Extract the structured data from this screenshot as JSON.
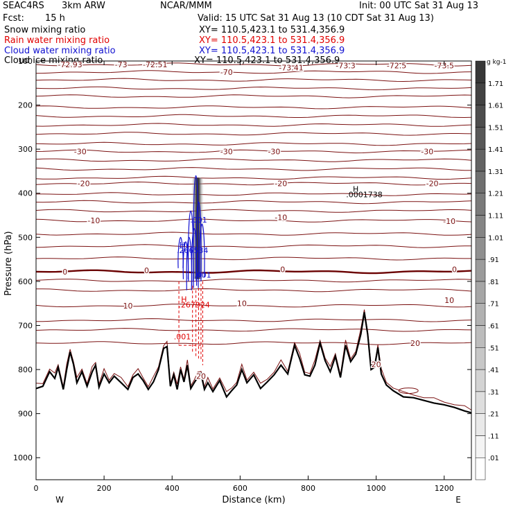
{
  "header": {
    "experiment": "SEAC4RS",
    "model": "3km ARW",
    "center": "NCAR/MMM",
    "init": "Init: 00 UTC Sat 31 Aug 13",
    "fcst_label": "Fcst:",
    "fcst_value": "15 h",
    "valid": "Valid: 15 UTC Sat 31 Aug 13 (10 CDT Sat 31 Aug 13)"
  },
  "fields": [
    {
      "label": "Snow mixing ratio",
      "xy": "XY= 110.5,423.1 to 531.4,356.9",
      "color": "#000000"
    },
    {
      "label": "Rain water mixing ratio",
      "xy": "XY= 110.5,423.1 to 531.4,356.9",
      "color": "#e00000"
    },
    {
      "label": "Cloud water mixing ratio",
      "xy": "XY= 110.5,423.1 to 531.4,356.9",
      "color": "#1010d0"
    },
    {
      "label": "Cloud ice mixing ratio",
      "xy": "XY= 110.5,423.1 to 531.4,356.9",
      "color": "#000000"
    }
  ],
  "colors": {
    "temperature": "#7a1010",
    "freezing": "#6a0000",
    "rain": "#e00000",
    "cloud_water": "#1010d0",
    "terrain": "#000000"
  },
  "chart_data": {
    "type": "cross-section",
    "xlabel": "Distance (km)",
    "ylabel": "Pressure (hPa)",
    "xlim": [
      0,
      1280
    ],
    "ylim": [
      1050,
      100
    ],
    "x_ticks": [
      0,
      200,
      400,
      600,
      800,
      1000,
      1200
    ],
    "y_ticks": [
      100,
      200,
      300,
      400,
      500,
      600,
      700,
      800,
      900,
      1000
    ],
    "west_label": "W",
    "east_label": "E",
    "colorbar": {
      "unit": "g kg-1",
      "labels": [
        ".01",
        ".11",
        ".21",
        ".31",
        ".41",
        ".51",
        ".61",
        ".71",
        ".81",
        ".91",
        "1.01",
        "1.11",
        "1.21",
        "1.31",
        "1.41",
        "1.51",
        "1.61",
        "1.71"
      ]
    },
    "temperature_contours": [
      {
        "label": "-72.93",
        "p": 108,
        "lx": 100
      },
      {
        "label": "-73",
        "p": 108,
        "lx": 250
      },
      {
        "label": "-72.51",
        "p": 108,
        "lx": 350
      },
      {
        "label": "-70",
        "p": 125,
        "lx": 560
      },
      {
        "label": "-73.41",
        "p": 115,
        "lx": 750
      },
      {
        "label": "-73.3",
        "p": 110,
        "lx": 910
      },
      {
        "label": "-72.5",
        "p": 110,
        "lx": 1060
      },
      {
        "label": "-73.5",
        "p": 110,
        "lx": 1200
      },
      {
        "label": "-30",
        "p": 305,
        "lx": 130
      },
      {
        "label": "-30",
        "p": 305,
        "lx": 560
      },
      {
        "label": "-30",
        "p": 305,
        "lx": 700
      },
      {
        "label": "-30",
        "p": 305,
        "lx": 1150
      },
      {
        "label": "-20",
        "p": 378,
        "lx": 140
      },
      {
        "label": "-20",
        "p": 378,
        "lx": 720
      },
      {
        "label": "-20",
        "p": 378,
        "lx": 1165
      },
      {
        "label": "-10",
        "p": 462,
        "lx": 170
      },
      {
        "label": "-10",
        "p": 455,
        "lx": 720
      },
      {
        "label": "-10",
        "p": 463,
        "lx": 1215
      },
      {
        "label": "0",
        "p": 578,
        "lx": 85
      },
      {
        "label": "0",
        "p": 575,
        "lx": 325
      },
      {
        "label": "0",
        "p": 573,
        "lx": 725
      },
      {
        "label": "0",
        "p": 573,
        "lx": 1230
      },
      {
        "label": "10",
        "p": 655,
        "lx": 270
      },
      {
        "label": "10",
        "p": 650,
        "lx": 605
      },
      {
        "label": "10",
        "p": 643,
        "lx": 1215
      },
      {
        "label": "20",
        "p": 740,
        "lx": 1115
      },
      {
        "label": "20",
        "p": 788,
        "lx": 1000
      },
      {
        "label": "20",
        "p": 815,
        "lx": 485
      }
    ],
    "temperature_levels_p": [
      108,
      125,
      143,
      162,
      180,
      205,
      225,
      245,
      265,
      288,
      305,
      325,
      345,
      365,
      378,
      402,
      420,
      440,
      462,
      492,
      520,
      548,
      578,
      598,
      620,
      655,
      688,
      710,
      740
    ],
    "terrain": {
      "x": [
        0,
        20,
        40,
        55,
        65,
        80,
        90,
        100,
        110,
        120,
        135,
        150,
        165,
        175,
        185,
        200,
        215,
        230,
        250,
        270,
        285,
        300,
        315,
        330,
        345,
        360,
        375,
        385,
        395,
        405,
        415,
        425,
        435,
        445,
        455,
        465,
        475,
        485,
        495,
        505,
        520,
        540,
        560,
        575,
        590,
        605,
        620,
        640,
        660,
        680,
        700,
        720,
        740,
        760,
        775,
        790,
        805,
        820,
        835,
        850,
        865,
        880,
        895,
        910,
        925,
        940,
        955,
        965,
        975,
        985,
        995,
        1005,
        1015,
        1030,
        1050,
        1080,
        1110,
        1140,
        1170,
        1200,
        1230,
        1260,
        1280
      ],
      "p": [
        843,
        838,
        805,
        820,
        795,
        845,
        800,
        760,
        788,
        830,
        805,
        838,
        805,
        790,
        840,
        810,
        830,
        815,
        830,
        845,
        818,
        810,
        825,
        845,
        828,
        800,
        752,
        748,
        838,
        812,
        845,
        800,
        828,
        790,
        843,
        830,
        818,
        810,
        845,
        830,
        850,
        825,
        862,
        848,
        835,
        800,
        830,
        812,
        843,
        828,
        812,
        790,
        810,
        745,
        775,
        812,
        815,
        790,
        740,
        780,
        805,
        770,
        818,
        745,
        782,
        765,
        720,
        670,
        720,
        800,
        795,
        750,
        810,
        835,
        848,
        862,
        864,
        870,
        876,
        880,
        886,
        894,
        898
      ]
    },
    "annotations": [
      {
        "text": "H",
        "x": 940,
        "p": 390
      },
      {
        "text": ".0001738",
        "x": 965,
        "p": 403
      },
      {
        "text": "H",
        "x": 430,
        "p": 517
      },
      {
        "text": ".266534",
        "x": 460,
        "p": 529
      },
      {
        "text": "H",
        "x": 435,
        "p": 640
      },
      {
        "text": ".267924",
        "x": 465,
        "p": 653
      },
      {
        "text": ".001",
        "x": 430,
        "p": 725
      },
      {
        "text": ".001",
        "x": 478,
        "p": 460
      },
      {
        "text": ".001",
        "x": 490,
        "p": 585
      }
    ],
    "shading": {
      "x": 475,
      "p_top": 365,
      "p_bottom": 595,
      "peak_value": 1.1
    }
  }
}
